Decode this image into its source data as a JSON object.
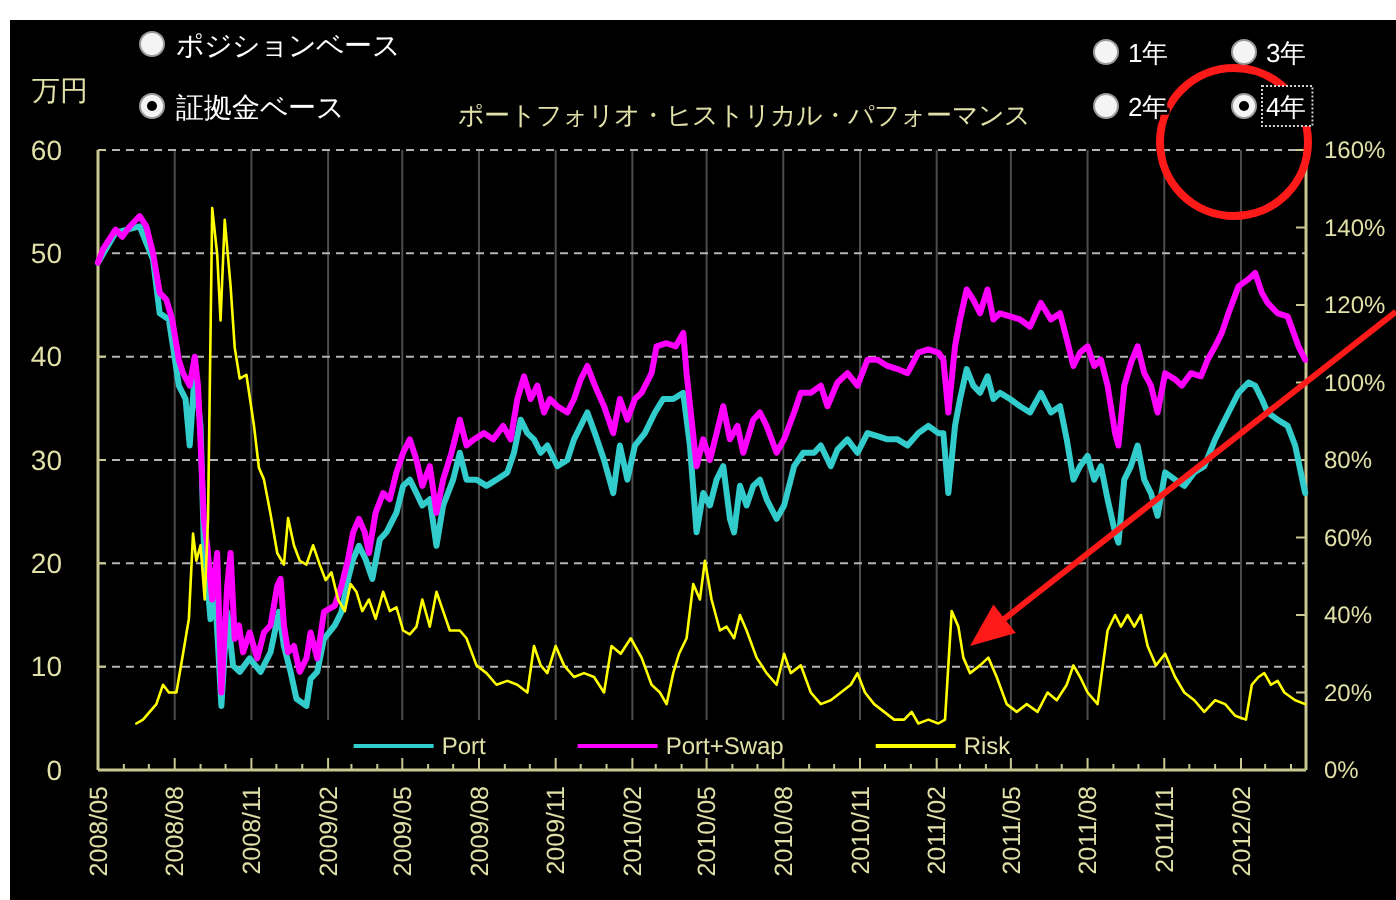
{
  "chart_data": {
    "type": "line",
    "title": "ポートフォリオ・ヒストリカル・パフォーマンス",
    "ylabel": "万円",
    "annotations": [
      "ポジションベース",
      "証拠金ベース",
      "1年",
      "3年",
      "2年",
      "4年"
    ],
    "xlim": [
      "2008-05-01",
      "2012-04-19"
    ],
    "ylim": [
      0,
      60
    ],
    "y2lim": [
      0,
      160
    ],
    "yticks": [
      0,
      10,
      20,
      30,
      40,
      50,
      60
    ],
    "y2ticks": [
      {
        "value": 0,
        "label": "0%"
      },
      {
        "value": 20,
        "label": "20%"
      },
      {
        "value": 40,
        "label": "40%"
      },
      {
        "value": 60,
        "label": "60%"
      },
      {
        "value": 80,
        "label": "80%"
      },
      {
        "value": 100,
        "label": "100%"
      },
      {
        "value": 120,
        "label": "120%"
      },
      {
        "value": 140,
        "label": "140%"
      },
      {
        "value": 160,
        "label": "160%"
      }
    ],
    "xticks": [
      {
        "value": "2008-05",
        "label": "2008/05"
      },
      {
        "value": "2008-06",
        "label": null
      },
      {
        "value": "2008-07",
        "label": null
      },
      {
        "value": "2008-08",
        "label": "2008/08"
      },
      {
        "value": "2008-09",
        "label": null
      },
      {
        "value": "2008-10",
        "label": null
      },
      {
        "value": "2008-11",
        "label": "2008/11"
      },
      {
        "value": "2008-12",
        "label": null
      },
      {
        "value": "2009-01",
        "label": null
      },
      {
        "value": "2009-02",
        "label": "2009/02"
      },
      {
        "value": "2009-03",
        "label": null
      },
      {
        "value": "2009-04",
        "label": null
      },
      {
        "value": "2009-05",
        "label": "2009/05"
      },
      {
        "value": "2009-06",
        "label": null
      },
      {
        "value": "2009-07",
        "label": null
      },
      {
        "value": "2009-08",
        "label": "2009/08"
      },
      {
        "value": "2009-09",
        "label": null
      },
      {
        "value": "2009-10",
        "label": null
      },
      {
        "value": "2009-11",
        "label": "2009/11"
      },
      {
        "value": "2009-12",
        "label": null
      },
      {
        "value": "2010-01",
        "label": null
      },
      {
        "value": "2010-02",
        "label": "2010/02"
      },
      {
        "value": "2010-03",
        "label": null
      },
      {
        "value": "2010-04",
        "label": null
      },
      {
        "value": "2010-05",
        "label": "2010/05"
      },
      {
        "value": "2010-06",
        "label": null
      },
      {
        "value": "2010-07",
        "label": null
      },
      {
        "value": "2010-08",
        "label": "2010/08"
      },
      {
        "value": "2010-09",
        "label": null
      },
      {
        "value": "2010-10",
        "label": null
      },
      {
        "value": "2010-11",
        "label": "2010/11"
      },
      {
        "value": "2010-12",
        "label": null
      },
      {
        "value": "2011-01",
        "label": null
      },
      {
        "value": "2011-02",
        "label": "2011/02"
      },
      {
        "value": "2011-03",
        "label": null
      },
      {
        "value": "2011-04",
        "label": null
      },
      {
        "value": "2011-05",
        "label": "2011/05"
      },
      {
        "value": "2011-06",
        "label": null
      },
      {
        "value": "2011-07",
        "label": null
      },
      {
        "value": "2011-08",
        "label": "2011/08"
      },
      {
        "value": "2011-09",
        "label": null
      },
      {
        "value": "2011-10",
        "label": null
      },
      {
        "value": "2011-11",
        "label": "2011/11"
      },
      {
        "value": "2011-12",
        "label": null
      },
      {
        "value": "2012-01",
        "label": null
      },
      {
        "value": "2012-02",
        "label": "2012/02"
      },
      {
        "value": "2012-03",
        "label": null
      },
      {
        "value": "2012-04",
        "label": null
      }
    ],
    "grid": true,
    "legend": "bottom",
    "series": [
      {
        "name": "Port",
        "color": "#33cccc",
        "x": [
          "2008-05-01",
          "2008-05-22",
          "2008-06-20",
          "2008-07-06",
          "2008-07-14",
          "2008-07-25",
          "2008-08-06",
          "2008-08-14",
          "2008-08-19",
          "2008-08-25",
          "2008-09-01",
          "2008-09-05",
          "2008-09-13",
          "2008-09-18",
          "2008-09-26",
          "2008-10-03",
          "2008-10-10",
          "2008-10-18",
          "2008-10-30",
          "2008-11-12",
          "2008-11-24",
          "2008-12-04",
          "2008-12-10",
          "2008-12-18",
          "2008-12-25",
          "2009-01-06",
          "2009-01-11",
          "2009-01-19",
          "2009-01-27",
          "2009-02-09",
          "2009-02-17",
          "2009-02-25",
          "2009-03-03",
          "2009-03-10",
          "2009-03-18",
          "2009-03-26",
          "2009-04-04",
          "2009-04-12",
          "2009-04-24",
          "2009-05-02",
          "2009-05-10",
          "2009-05-18",
          "2009-05-25",
          "2009-06-03",
          "2009-06-11",
          "2009-06-19",
          "2009-07-01",
          "2009-07-09",
          "2009-07-17",
          "2009-07-29",
          "2009-08-10",
          "2009-08-22",
          "2009-09-04",
          "2009-09-12",
          "2009-09-20",
          "2009-09-28",
          "2009-10-06",
          "2009-10-14",
          "2009-10-22",
          "2009-11-03",
          "2009-11-15",
          "2009-11-23",
          "2009-12-01",
          "2009-12-09",
          "2009-12-18",
          "2009-12-29",
          "2010-01-09",
          "2010-01-17",
          "2010-01-26",
          "2010-02-04",
          "2010-02-16",
          "2010-02-28",
          "2010-03-10",
          "2010-03-22",
          "2010-04-03",
          "2010-04-11",
          "2010-04-19",
          "2010-04-27",
          "2010-05-05",
          "2010-05-13",
          "2010-05-21",
          "2010-05-29",
          "2010-06-03",
          "2010-06-10",
          "2010-06-18",
          "2010-06-26",
          "2010-07-04",
          "2010-07-12",
          "2010-07-24",
          "2010-08-02",
          "2010-08-14",
          "2010-08-25",
          "2010-09-07",
          "2010-09-15",
          "2010-09-27",
          "2010-10-05",
          "2010-10-17",
          "2010-10-29",
          "2010-11-10",
          "2010-11-22",
          "2010-12-04",
          "2010-12-16",
          "2010-12-28",
          "2011-01-10",
          "2011-01-22",
          "2011-02-03",
          "2011-02-09",
          "2011-02-15",
          "2011-02-23",
          "2011-03-01",
          "2011-03-09",
          "2011-03-17",
          "2011-03-25",
          "2011-04-03",
          "2011-04-10",
          "2011-04-18",
          "2011-04-30",
          "2011-05-12",
          "2011-05-24",
          "2011-06-06",
          "2011-06-18",
          "2011-06-29",
          "2011-07-07",
          "2011-07-15",
          "2011-07-23",
          "2011-08-01",
          "2011-08-09",
          "2011-08-17",
          "2011-08-25",
          "2011-09-03",
          "2011-09-07",
          "2011-09-14",
          "2011-09-22",
          "2011-09-30",
          "2011-10-08",
          "2011-10-16",
          "2011-10-24",
          "2011-11-02",
          "2011-11-14",
          "2011-11-25",
          "2011-12-07",
          "2011-12-19",
          "2012-01-01",
          "2012-01-09",
          "2012-01-17",
          "2012-01-29",
          "2012-02-10",
          "2012-02-18",
          "2012-02-26",
          "2012-03-04",
          "2012-03-16",
          "2012-03-28",
          "2012-04-06",
          "2012-04-18"
        ],
        "values": [
          49.1,
          52,
          52.6,
          49.4,
          44.2,
          43.6,
          37.2,
          35.9,
          31.4,
          38.4,
          33.3,
          21.7,
          14.6,
          17.8,
          6.2,
          15.3,
          10.1,
          9.5,
          10.8,
          9.5,
          11.4,
          15.3,
          12,
          9.5,
          6.9,
          6.2,
          8.8,
          9.5,
          12.7,
          14,
          15.3,
          18.5,
          20.4,
          21.7,
          20.4,
          18.5,
          22.3,
          23,
          24.9,
          27.5,
          28.1,
          26.8,
          25.6,
          26.2,
          21.7,
          25.6,
          28.1,
          30.7,
          28.1,
          28.1,
          27.5,
          28.1,
          28.8,
          30.7,
          33.9,
          32.6,
          32,
          30.7,
          31.4,
          29.4,
          30,
          32,
          33.3,
          34.6,
          32.6,
          30,
          26.8,
          31.4,
          28.1,
          31.4,
          32.6,
          34.6,
          35.9,
          35.9,
          36.5,
          31.4,
          23,
          26.8,
          25.6,
          28.1,
          29.4,
          24.3,
          23,
          27.5,
          25.6,
          27.5,
          28.1,
          26.2,
          24.3,
          25.6,
          29.4,
          30.7,
          30.7,
          31.4,
          29.4,
          31,
          32,
          30.7,
          32.6,
          32.3,
          32,
          32,
          31.4,
          32.6,
          33.3,
          32.6,
          32.6,
          26.8,
          33.3,
          35.9,
          38.8,
          37.2,
          36.5,
          38.1,
          35.9,
          36.5,
          35.9,
          35.2,
          34.6,
          36.5,
          34.6,
          35.2,
          32,
          28.1,
          29.4,
          30.4,
          28.1,
          29.4,
          26.2,
          23,
          22,
          28.1,
          29.4,
          31.4,
          28.1,
          26.8,
          24.6,
          28.8,
          28.1,
          27.5,
          28.8,
          29.4,
          32,
          33.3,
          34.6,
          36.5,
          37.5,
          37.2,
          35.9,
          34.6,
          33.9,
          33.3,
          31.4,
          26.8
        ]
      },
      {
        "name": "Port+Swap",
        "color": "#ff00ff",
        "x": [
          "2008-05-01",
          "2008-05-07",
          "2008-05-22",
          "2008-05-30",
          "2008-06-08",
          "2008-06-20",
          "2008-06-28",
          "2008-07-06",
          "2008-07-14",
          "2008-07-22",
          "2008-07-29",
          "2008-08-06",
          "2008-08-11",
          "2008-08-19",
          "2008-08-25",
          "2008-08-29",
          "2008-09-05",
          "2008-09-09",
          "2008-09-15",
          "2008-09-21",
          "2008-09-26",
          "2008-10-03",
          "2008-10-07",
          "2008-10-12",
          "2008-10-17",
          "2008-10-22",
          "2008-10-30",
          "2008-11-08",
          "2008-11-16",
          "2008-11-24",
          "2008-12-02",
          "2008-12-06",
          "2008-12-10",
          "2008-12-15",
          "2008-12-22",
          "2008-12-29",
          "2009-01-06",
          "2009-01-11",
          "2009-01-19",
          "2009-01-27",
          "2009-02-09",
          "2009-02-17",
          "2009-02-25",
          "2009-03-03",
          "2009-03-10",
          "2009-03-17",
          "2009-03-22",
          "2009-03-30",
          "2009-04-08",
          "2009-04-16",
          "2009-04-24",
          "2009-05-02",
          "2009-05-10",
          "2009-05-18",
          "2009-05-25",
          "2009-06-03",
          "2009-06-11",
          "2009-06-19",
          "2009-06-29",
          "2009-07-09",
          "2009-07-17",
          "2009-07-26",
          "2009-08-07",
          "2009-08-18",
          "2009-08-30",
          "2009-09-08",
          "2009-09-16",
          "2009-09-24",
          "2009-10-02",
          "2009-10-10",
          "2009-10-18",
          "2009-10-25",
          "2009-11-03",
          "2009-11-15",
          "2009-11-23",
          "2009-12-01",
          "2009-12-09",
          "2009-12-18",
          "2009-12-29",
          "2010-01-09",
          "2010-01-17",
          "2010-01-26",
          "2010-02-04",
          "2010-02-12",
          "2010-02-24",
          "2010-03-02",
          "2010-03-14",
          "2010-03-25",
          "2010-04-03",
          "2010-04-07",
          "2010-04-19",
          "2010-04-27",
          "2010-05-05",
          "2010-05-13",
          "2010-05-21",
          "2010-05-29",
          "2010-06-07",
          "2010-06-14",
          "2010-06-26",
          "2010-07-04",
          "2010-07-12",
          "2010-07-24",
          "2010-08-02",
          "2010-08-14",
          "2010-08-22",
          "2010-09-03",
          "2010-09-15",
          "2010-09-23",
          "2010-10-05",
          "2010-10-17",
          "2010-10-29",
          "2010-11-10",
          "2010-11-22",
          "2010-12-04",
          "2010-12-16",
          "2010-12-28",
          "2011-01-10",
          "2011-01-22",
          "2011-02-03",
          "2011-02-09",
          "2011-02-15",
          "2011-02-23",
          "2011-03-01",
          "2011-03-09",
          "2011-03-17",
          "2011-03-25",
          "2011-04-03",
          "2011-04-10",
          "2011-04-18",
          "2011-04-30",
          "2011-05-12",
          "2011-05-24",
          "2011-06-06",
          "2011-06-18",
          "2011-06-29",
          "2011-07-07",
          "2011-07-15",
          "2011-07-23",
          "2011-08-01",
          "2011-08-09",
          "2011-08-17",
          "2011-08-25",
          "2011-09-03",
          "2011-09-07",
          "2011-09-14",
          "2011-09-22",
          "2011-09-30",
          "2011-10-08",
          "2011-10-16",
          "2011-10-24",
          "2011-11-02",
          "2011-11-14",
          "2011-11-22",
          "2011-12-03",
          "2011-12-15",
          "2011-12-23",
          "2012-01-01",
          "2012-01-09",
          "2012-01-17",
          "2012-01-29",
          "2012-02-10",
          "2012-02-18",
          "2012-02-26",
          "2012-03-04",
          "2012-03-16",
          "2012-03-28",
          "2012-04-10",
          "2012-04-18"
        ],
        "values": [
          49.1,
          50.4,
          52.3,
          51.6,
          52.6,
          53.6,
          52.6,
          50,
          46.2,
          45.5,
          43.6,
          39.7,
          38.4,
          37.2,
          40,
          37.2,
          24.3,
          21.7,
          16.5,
          21,
          7.5,
          17.8,
          21,
          12.7,
          14,
          11.4,
          13.3,
          10.8,
          13.3,
          14,
          17.8,
          18.5,
          14,
          11.4,
          12,
          9.5,
          10.8,
          13.3,
          10.8,
          15.3,
          15.9,
          17.8,
          20.4,
          23,
          24.3,
          23,
          21,
          24.9,
          26.8,
          26.2,
          28.8,
          30.7,
          32,
          30,
          27.5,
          29.4,
          24.9,
          28.1,
          30.7,
          33.9,
          31.4,
          32,
          32.6,
          32,
          33.3,
          32,
          35.9,
          38.1,
          35.9,
          37.2,
          34.6,
          35.9,
          35.2,
          34.6,
          35.9,
          37.8,
          39.1,
          37.2,
          35.2,
          32.6,
          35.9,
          33.9,
          35.9,
          36.5,
          38.4,
          41,
          41.3,
          41,
          42.3,
          38.4,
          29.4,
          32,
          30,
          32.6,
          35.2,
          32,
          33.3,
          30.7,
          33.9,
          34.6,
          33.3,
          30.7,
          32,
          34.6,
          36.5,
          36.5,
          37.2,
          35.2,
          37.5,
          38.4,
          37.2,
          39.7,
          39.7,
          39.1,
          38.8,
          38.4,
          40.4,
          40.7,
          40.4,
          39.7,
          34.6,
          41,
          43.6,
          46.5,
          45.5,
          44.2,
          46.5,
          43.6,
          44.2,
          43.9,
          43.6,
          42.9,
          45.2,
          43.6,
          44.2,
          41.7,
          39.1,
          40.4,
          41,
          39.1,
          39.7,
          37.2,
          32.6,
          31.4,
          37.2,
          39.4,
          41,
          38.4,
          37.2,
          34.6,
          38.4,
          37.8,
          37.2,
          38.4,
          38.1,
          39.7,
          41,
          42.3,
          44.2,
          46.8,
          47.5,
          48.1,
          46.2,
          45.2,
          44.2,
          43.9,
          41,
          39.7
        ]
      },
      {
        "name": "Risk",
        "color": "#ffff00",
        "axis": "y2",
        "x": [
          "2008-06-16",
          "2008-06-24",
          "2008-07-02",
          "2008-07-10",
          "2008-07-18",
          "2008-07-25",
          "2008-08-03",
          "2008-08-11",
          "2008-08-18",
          "2008-08-23",
          "2008-08-27",
          "2008-09-01",
          "2008-09-06",
          "2008-09-10",
          "2008-09-15",
          "2008-09-21",
          "2008-09-25",
          "2008-09-30",
          "2008-10-07",
          "2008-10-12",
          "2008-10-18",
          "2008-10-26",
          "2008-11-04",
          "2008-11-10",
          "2008-11-16",
          "2008-11-24",
          "2008-12-02",
          "2008-12-10",
          "2008-12-15",
          "2008-12-22",
          "2008-12-29",
          "2009-01-06",
          "2009-01-14",
          "2009-01-22",
          "2009-01-29",
          "2009-02-05",
          "2009-02-13",
          "2009-02-21",
          "2009-02-28",
          "2009-03-07",
          "2009-03-14",
          "2009-03-22",
          "2009-03-30",
          "2009-04-08",
          "2009-04-16",
          "2009-04-24",
          "2009-05-02",
          "2009-05-10",
          "2009-05-18",
          "2009-05-25",
          "2009-06-03",
          "2009-06-11",
          "2009-06-19",
          "2009-06-27",
          "2009-07-09",
          "2009-07-17",
          "2009-07-29",
          "2009-08-10",
          "2009-08-22",
          "2009-09-04",
          "2009-09-16",
          "2009-09-28",
          "2009-10-06",
          "2009-10-14",
          "2009-10-22",
          "2009-11-01",
          "2009-11-11",
          "2009-11-23",
          "2009-12-05",
          "2009-12-17",
          "2009-12-29",
          "2010-01-07",
          "2010-01-18",
          "2010-01-30",
          "2010-02-12",
          "2010-02-24",
          "2010-03-06",
          "2010-03-14",
          "2010-03-22",
          "2010-03-29",
          "2010-04-07",
          "2010-04-15",
          "2010-04-23",
          "2010-04-29",
          "2010-05-07",
          "2010-05-17",
          "2010-05-25",
          "2010-06-03",
          "2010-06-10",
          "2010-06-18",
          "2010-06-30",
          "2010-07-12",
          "2010-07-24",
          "2010-08-02",
          "2010-08-10",
          "2010-08-22",
          "2010-09-03",
          "2010-09-15",
          "2010-09-27",
          "2010-10-09",
          "2010-10-21",
          "2010-10-29",
          "2010-11-07",
          "2010-11-18",
          "2010-11-30",
          "2010-12-12",
          "2010-12-24",
          "2011-01-02",
          "2011-01-10",
          "2011-01-22",
          "2011-02-03",
          "2011-02-11",
          "2011-02-19",
          "2011-02-27",
          "2011-03-05",
          "2011-03-13",
          "2011-03-25",
          "2011-04-04",
          "2011-04-14",
          "2011-04-26",
          "2011-05-08",
          "2011-05-20",
          "2011-06-02",
          "2011-06-14",
          "2011-06-25",
          "2011-07-07",
          "2011-07-15",
          "2011-07-23",
          "2011-08-01",
          "2011-08-13",
          "2011-08-25",
          "2011-09-03",
          "2011-09-10",
          "2011-09-18",
          "2011-09-26",
          "2011-10-04",
          "2011-10-12",
          "2011-10-22",
          "2011-11-02",
          "2011-11-14",
          "2011-11-25",
          "2011-12-07",
          "2011-12-19",
          "2012-01-01",
          "2012-01-13",
          "2012-01-25",
          "2012-02-07",
          "2012-02-14",
          "2012-02-22",
          "2012-02-29",
          "2012-03-08",
          "2012-03-16",
          "2012-03-24",
          "2012-04-06",
          "2012-04-18"
        ],
        "values": [
          12,
          13,
          15,
          17,
          22,
          20,
          20,
          30,
          39,
          61,
          54,
          58,
          44,
          65,
          145,
          133,
          116,
          142,
          125,
          109,
          101,
          102,
          89,
          78,
          75,
          66,
          56,
          53,
          65,
          58,
          54,
          53,
          58,
          53,
          49,
          51,
          44,
          41,
          48,
          46,
          41,
          44,
          39,
          46,
          41,
          42,
          36,
          35,
          37,
          44,
          37,
          46,
          41,
          36,
          36,
          34,
          27,
          25,
          22,
          23,
          22,
          20,
          32,
          27,
          25,
          32,
          27,
          24,
          25,
          24,
          20,
          32,
          30,
          34,
          29,
          22,
          20,
          17,
          25,
          30,
          34,
          48,
          44,
          54,
          44,
          36,
          37,
          34,
          40,
          36,
          29,
          25,
          22,
          30,
          25,
          27,
          20,
          17,
          18,
          20,
          22,
          25,
          20,
          17,
          15,
          13,
          13,
          15,
          12,
          13,
          12,
          13,
          41,
          37,
          29,
          25,
          27,
          29,
          24,
          17,
          15,
          17,
          15,
          20,
          18,
          22,
          27,
          24,
          20,
          17,
          36,
          40,
          37,
          40,
          37,
          40,
          32,
          27,
          30,
          24,
          20,
          18,
          15,
          18,
          17,
          14,
          13,
          22,
          24,
          25,
          22,
          23,
          20,
          18,
          17
        ]
      }
    ]
  }
}
